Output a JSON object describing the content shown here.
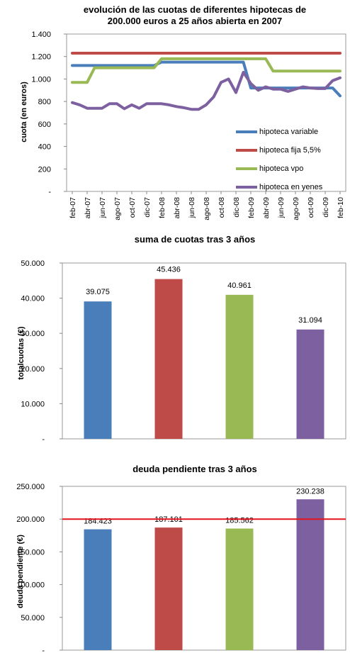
{
  "chart_data": [
    {
      "type": "line",
      "title_line1": "evolución de las cuotas de diferentes hipotecas de",
      "title_line2": "200.000 euros a 25 años abierta en 2007",
      "ylabel": "cuota (en euros)",
      "ylim": [
        0,
        1400
      ],
      "yticks": [
        "-",
        "200",
        "400",
        "600",
        "800",
        "1.000",
        "1.200",
        "1.400"
      ],
      "xtick_labels": [
        "feb-07",
        "abr-07",
        "jun-07",
        "ago-07",
        "oct-07",
        "dic-07",
        "feb-08",
        "abr-08",
        "jun-08",
        "ago-08",
        "oct-08",
        "dic-08",
        "feb-09",
        "abr-09",
        "jun-09",
        "ago-09",
        "oct-09",
        "dic-09",
        "feb-10"
      ],
      "x": [
        "feb-07",
        "mar-07",
        "abr-07",
        "may-07",
        "jun-07",
        "jul-07",
        "ago-07",
        "sep-07",
        "oct-07",
        "nov-07",
        "dic-07",
        "ene-08",
        "feb-08",
        "mar-08",
        "abr-08",
        "may-08",
        "jun-08",
        "jul-08",
        "ago-08",
        "sep-08",
        "oct-08",
        "nov-08",
        "dic-08",
        "ene-09",
        "feb-09",
        "mar-09",
        "abr-09",
        "may-09",
        "jun-09",
        "jul-09",
        "ago-09",
        "sep-09",
        "oct-09",
        "nov-09",
        "dic-09",
        "ene-10",
        "feb-10"
      ],
      "legend_position": "bottom-right",
      "series": [
        {
          "name": "hipoteca variable",
          "color": "#4a7ebb",
          "values": [
            1120,
            1120,
            1120,
            1120,
            1120,
            1120,
            1120,
            1120,
            1120,
            1120,
            1120,
            1120,
            1150,
            1150,
            1150,
            1150,
            1150,
            1150,
            1150,
            1150,
            1150,
            1150,
            1150,
            1150,
            920,
            920,
            920,
            920,
            920,
            920,
            920,
            920,
            920,
            920,
            920,
            920,
            850
          ]
        },
        {
          "name": "hipoteca fija 5,5%",
          "color": "#be4b48",
          "values": [
            1230,
            1230,
            1230,
            1230,
            1230,
            1230,
            1230,
            1230,
            1230,
            1230,
            1230,
            1230,
            1230,
            1230,
            1230,
            1230,
            1230,
            1230,
            1230,
            1230,
            1230,
            1230,
            1230,
            1230,
            1230,
            1230,
            1230,
            1230,
            1230,
            1230,
            1230,
            1230,
            1230,
            1230,
            1230,
            1230,
            1230
          ]
        },
        {
          "name": "hipoteca vpo",
          "color": "#98b954",
          "values": [
            970,
            970,
            970,
            1100,
            1100,
            1100,
            1100,
            1100,
            1100,
            1100,
            1100,
            1100,
            1180,
            1180,
            1180,
            1180,
            1180,
            1180,
            1180,
            1180,
            1180,
            1180,
            1180,
            1180,
            1180,
            1180,
            1180,
            1070,
            1070,
            1070,
            1070,
            1070,
            1070,
            1070,
            1070,
            1070,
            1070
          ]
        },
        {
          "name": "hipoteca en yenes",
          "color": "#7d60a0",
          "values": [
            790,
            770,
            740,
            740,
            740,
            780,
            780,
            735,
            770,
            740,
            780,
            780,
            780,
            770,
            755,
            745,
            730,
            730,
            770,
            840,
            970,
            1000,
            880,
            1060,
            960,
            900,
            930,
            910,
            910,
            890,
            910,
            930,
            920,
            915,
            915,
            985,
            1010
          ]
        }
      ]
    },
    {
      "type": "bar",
      "title": "suma de cuotas tras 3 años",
      "ylabel": "totalcuotas (€)",
      "ylim": [
        0,
        50000
      ],
      "yticks": [
        "-",
        "10.000",
        "20.000",
        "30.000",
        "40.000",
        "50.000"
      ],
      "values": [
        39075,
        45436,
        40961,
        31094
      ],
      "value_labels": [
        "39.075",
        "45.436",
        "40.961",
        "31.094"
      ],
      "colors": [
        "#4a7ebb",
        "#be4b48",
        "#98b954",
        "#7d60a0"
      ]
    },
    {
      "type": "bar",
      "title": "deuda pendiente  tras 3 años",
      "ylabel": "deuda pendiente (€)",
      "ylim": [
        0,
        250000
      ],
      "yticks": [
        "-",
        "50.000",
        "100.000",
        "150.000",
        "200.000",
        "250.000"
      ],
      "values": [
        184423,
        187101,
        185562,
        230238
      ],
      "value_labels": [
        "184.423",
        "187.101",
        "185.562",
        "230.238"
      ],
      "colors": [
        "#4a7ebb",
        "#be4b48",
        "#98b954",
        "#7d60a0"
      ],
      "reference_line": {
        "value": 200000,
        "color": "#e3141b"
      }
    }
  ]
}
